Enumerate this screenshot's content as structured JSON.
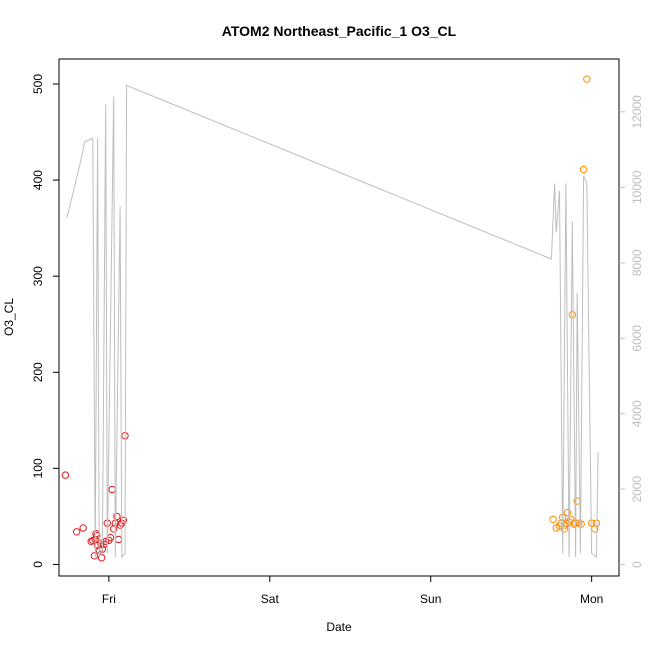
{
  "chart_data": {
    "type": "scatter",
    "title": "ATOM2 Northeast_Pacific_1 O3_CL",
    "xlabel": "Date",
    "ylabel": "O3_CL",
    "x_unit": "day",
    "xlim": [
      -0.31,
      3.17
    ],
    "ylim": [
      -12,
      526
    ],
    "y2lim": [
      -300,
      13400
    ],
    "x_ticks": [
      {
        "value": 0,
        "label": "Fri"
      },
      {
        "value": 1,
        "label": "Sat"
      },
      {
        "value": 2,
        "label": "Sun"
      },
      {
        "value": 3,
        "label": "Mon"
      }
    ],
    "y_ticks": [
      {
        "value": 0,
        "label": "0"
      },
      {
        "value": 100,
        "label": "100"
      },
      {
        "value": 200,
        "label": "200"
      },
      {
        "value": 300,
        "label": "300"
      },
      {
        "value": 400,
        "label": "400"
      },
      {
        "value": 500,
        "label": "500"
      }
    ],
    "y2_ticks": [
      {
        "value": 0,
        "label": "0"
      },
      {
        "value": 2000,
        "label": "2000"
      },
      {
        "value": 4000,
        "label": "4000"
      },
      {
        "value": 6000,
        "label": "6000"
      },
      {
        "value": 8000,
        "label": "8000"
      },
      {
        "value": 10000,
        "label": "10000"
      },
      {
        "value": 12000,
        "label": "12000"
      }
    ],
    "series": [
      {
        "color": "#e31a1c",
        "style": "points",
        "axis": "left",
        "points": [
          [
            -0.27,
            93
          ],
          [
            -0.2,
            34
          ],
          [
            -0.16,
            38
          ],
          [
            -0.11,
            24
          ],
          [
            -0.1,
            25
          ],
          [
            -0.09,
            9
          ],
          [
            -0.085,
            26
          ],
          [
            -0.08,
            32
          ],
          [
            -0.075,
            30
          ],
          [
            -0.07,
            20
          ],
          [
            -0.06,
            15
          ],
          [
            -0.05,
            22
          ],
          [
            -0.045,
            7
          ],
          [
            -0.04,
            16
          ],
          [
            -0.03,
            21
          ],
          [
            -0.02,
            24
          ],
          [
            -0.01,
            43
          ],
          [
            0.0,
            25
          ],
          [
            0.01,
            28
          ],
          [
            0.02,
            78
          ],
          [
            0.03,
            37
          ],
          [
            0.04,
            43
          ],
          [
            0.05,
            50
          ],
          [
            0.06,
            26
          ],
          [
            0.07,
            41
          ],
          [
            0.08,
            43
          ],
          [
            0.09,
            46
          ],
          [
            0.1,
            134
          ]
        ]
      },
      {
        "color": "#ff8c00",
        "style": "points",
        "axis": "left",
        "points": [
          [
            2.76,
            47
          ],
          [
            2.78,
            38
          ],
          [
            2.8,
            40
          ],
          [
            2.81,
            43
          ],
          [
            2.82,
            49
          ],
          [
            2.83,
            37
          ],
          [
            2.835,
            41
          ],
          [
            2.84,
            43
          ],
          [
            2.85,
            54
          ],
          [
            2.86,
            44
          ],
          [
            2.87,
            47
          ],
          [
            2.88,
            260
          ],
          [
            2.89,
            42
          ],
          [
            2.9,
            43
          ],
          [
            2.91,
            66
          ],
          [
            2.92,
            43
          ],
          [
            2.935,
            42
          ],
          [
            2.95,
            411
          ],
          [
            2.97,
            505
          ],
          [
            3.0,
            43
          ],
          [
            3.02,
            37
          ],
          [
            3.03,
            43
          ]
        ]
      },
      {
        "color": "#bebebe",
        "style": "line",
        "axis": "right",
        "points": [
          [
            -0.26,
            9200
          ],
          [
            -0.18,
            10600
          ],
          [
            -0.15,
            11200
          ],
          [
            -0.1,
            11300
          ],
          [
            -0.085,
            200
          ],
          [
            -0.07,
            11300
          ],
          [
            -0.06,
            200
          ],
          [
            -0.04,
            400
          ],
          [
            -0.02,
            12200
          ],
          [
            -0.01,
            300
          ],
          [
            0.03,
            12400
          ],
          [
            0.04,
            200
          ],
          [
            0.07,
            9500
          ],
          [
            0.08,
            200
          ],
          [
            0.1,
            300
          ],
          [
            0.11,
            12700
          ],
          [
            2.75,
            8100
          ],
          [
            2.77,
            10100
          ],
          [
            2.78,
            8800
          ],
          [
            2.8,
            9900
          ],
          [
            2.82,
            300
          ],
          [
            2.84,
            10100
          ],
          [
            2.86,
            200
          ],
          [
            2.88,
            9100
          ],
          [
            2.9,
            200
          ],
          [
            2.91,
            7200
          ],
          [
            2.93,
            300
          ],
          [
            2.95,
            10300
          ],
          [
            2.97,
            10100
          ],
          [
            3.0,
            300
          ],
          [
            3.03,
            200
          ],
          [
            3.04,
            3000
          ]
        ]
      }
    ]
  }
}
